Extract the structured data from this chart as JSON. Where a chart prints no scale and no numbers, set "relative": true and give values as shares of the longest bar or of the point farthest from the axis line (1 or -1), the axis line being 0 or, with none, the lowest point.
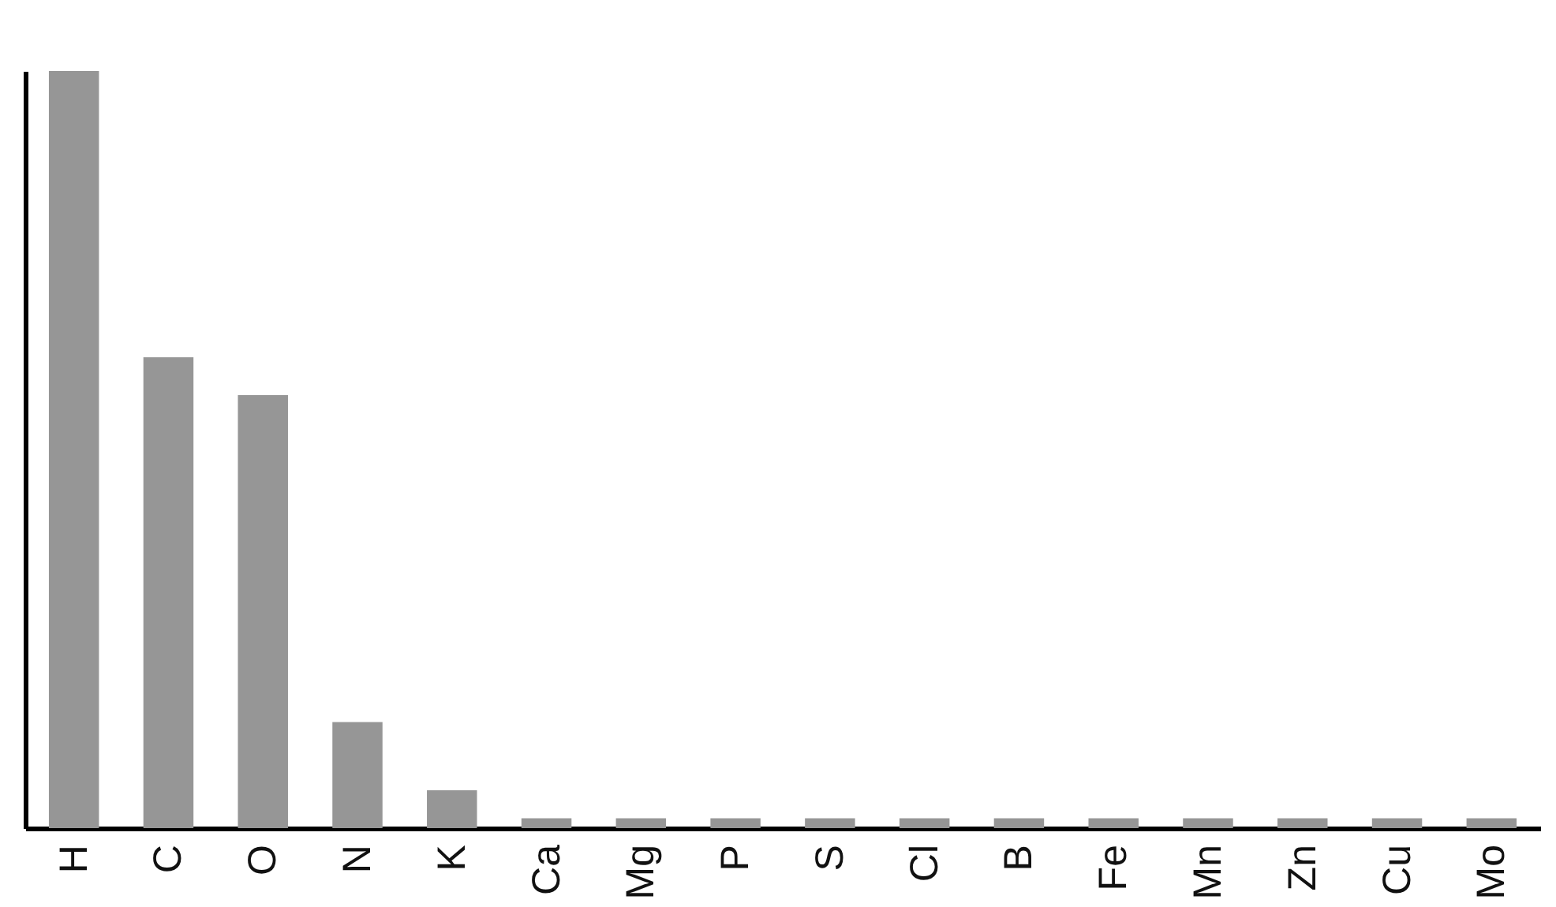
{
  "chart_data": {
    "type": "bar",
    "relative": true,
    "color": "#969696",
    "categories": [
      "H",
      "C",
      "O",
      "N",
      "K",
      "Ca",
      "Mg",
      "P",
      "S",
      "Cl",
      "B",
      "Fe",
      "Mn",
      "Zn",
      "Cu",
      "Mo"
    ],
    "values": [
      1,
      0.622,
      0.572,
      0.14,
      0.05,
      0.013,
      0.013,
      0.013,
      0.013,
      0.013,
      0.013,
      0.013,
      0.013,
      0.013,
      0.013,
      0.013
    ]
  }
}
